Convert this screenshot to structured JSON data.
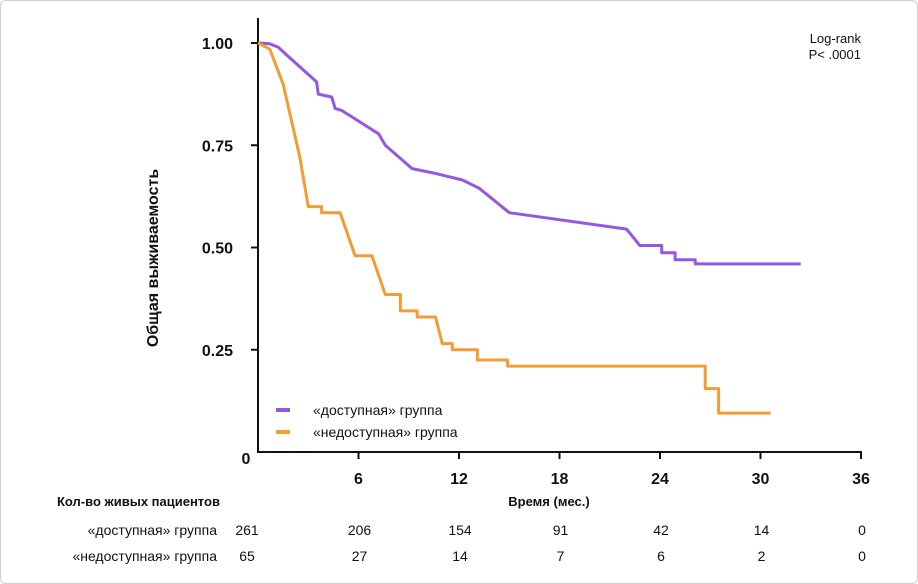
{
  "chart_data": {
    "type": "line",
    "subtype": "kaplan-meier",
    "ylabel": "Общая выживаемость",
    "xlabel": "Время (мес.)",
    "xlim": [
      0,
      36
    ],
    "ylim": [
      0,
      1.03
    ],
    "xticks": [
      {
        "value": 0,
        "label": "0"
      },
      {
        "value": 6,
        "label": "6"
      },
      {
        "value": 12,
        "label": "12"
      },
      {
        "value": 18,
        "label": "18"
      },
      {
        "value": 24,
        "label": "24"
      },
      {
        "value": 30,
        "label": "30"
      },
      {
        "value": 36,
        "label": "36"
      }
    ],
    "yticks": [
      {
        "value": 1.0,
        "label": "1.00"
      },
      {
        "value": 0.75,
        "label": "0.75"
      },
      {
        "value": 0.5,
        "label": "0.50"
      },
      {
        "value": 0.25,
        "label": "0.25"
      }
    ],
    "annotation_lines": [
      "Log-rank",
      "P< .0001"
    ],
    "legend_position": "bottom-left",
    "series": [
      {
        "name": "«доступная» группа",
        "color": "#9457e3",
        "points": [
          [
            0,
            1.0
          ],
          [
            0.7,
            0.998
          ],
          [
            1.2,
            0.99
          ],
          [
            2.0,
            0.96
          ],
          [
            3.5,
            0.905
          ],
          [
            3.6,
            0.875
          ],
          [
            4.4,
            0.868
          ],
          [
            4.6,
            0.84
          ],
          [
            5.0,
            0.835
          ],
          [
            7.2,
            0.778
          ],
          [
            7.6,
            0.75
          ],
          [
            9.2,
            0.693
          ],
          [
            10.5,
            0.682
          ],
          [
            12.2,
            0.665
          ],
          [
            13.2,
            0.645
          ],
          [
            15.0,
            0.585
          ],
          [
            22.0,
            0.545
          ],
          [
            22.8,
            0.505
          ],
          [
            24.1,
            0.505
          ],
          [
            24.1,
            0.487
          ],
          [
            24.9,
            0.487
          ],
          [
            24.9,
            0.47
          ],
          [
            26.1,
            0.47
          ],
          [
            26.1,
            0.46
          ],
          [
            32.4,
            0.46
          ]
        ]
      },
      {
        "name": "«недоступная» группа",
        "color": "#f39c33",
        "points": [
          [
            0,
            1.0
          ],
          [
            0.7,
            0.985
          ],
          [
            1.5,
            0.9
          ],
          [
            2.5,
            0.72
          ],
          [
            3.0,
            0.6
          ],
          [
            3.8,
            0.6
          ],
          [
            3.8,
            0.585
          ],
          [
            4.9,
            0.585
          ],
          [
            5.8,
            0.48
          ],
          [
            6.8,
            0.48
          ],
          [
            7.6,
            0.385
          ],
          [
            8.5,
            0.385
          ],
          [
            8.5,
            0.345
          ],
          [
            9.5,
            0.345
          ],
          [
            9.5,
            0.33
          ],
          [
            10.6,
            0.33
          ],
          [
            11.0,
            0.265
          ],
          [
            11.6,
            0.265
          ],
          [
            11.6,
            0.25
          ],
          [
            13.1,
            0.25
          ],
          [
            13.1,
            0.225
          ],
          [
            14.9,
            0.225
          ],
          [
            14.9,
            0.21
          ],
          [
            26.7,
            0.21
          ],
          [
            26.7,
            0.155
          ],
          [
            27.5,
            0.155
          ],
          [
            27.5,
            0.095
          ],
          [
            30.6,
            0.095
          ]
        ]
      }
    ]
  },
  "risk_table": {
    "header": "Кол-во живых пациентов",
    "rows": [
      {
        "label": "«доступная» группа",
        "values": [
          "261",
          "206",
          "154",
          "91",
          "42",
          "14",
          "0"
        ]
      },
      {
        "label": "«недоступная» группа",
        "values": [
          "65",
          "27",
          "14",
          "7",
          "6",
          "2",
          "0"
        ]
      }
    ]
  }
}
